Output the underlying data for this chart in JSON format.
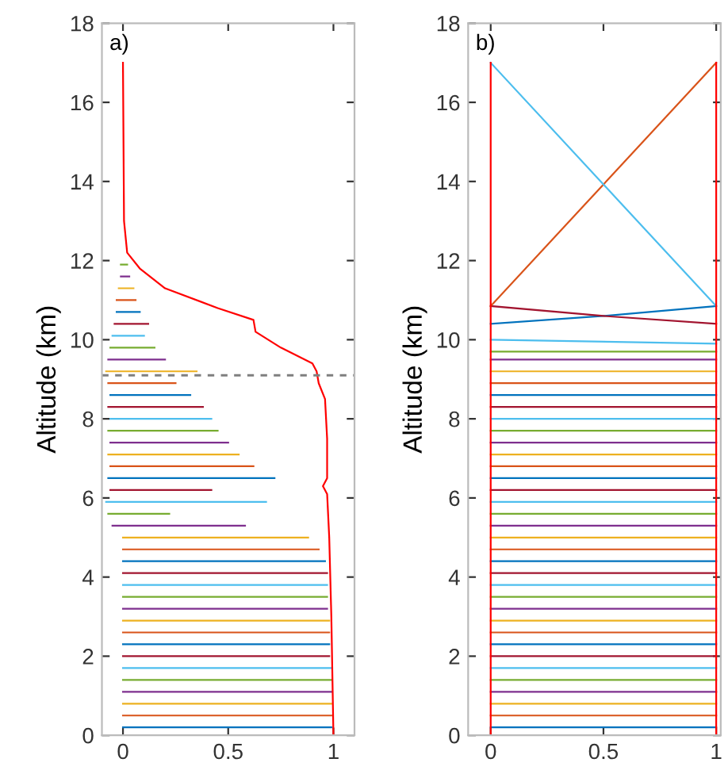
{
  "chart_data": [
    {
      "type": "line",
      "annotations": [
        "a)"
      ],
      "ylabel": "Altitude (km)",
      "xlim": [
        -0.1,
        1.1
      ],
      "xticks": [
        0,
        0.5,
        1
      ],
      "ylim": [
        0,
        18
      ],
      "yticks": [
        0,
        2,
        4,
        6,
        8,
        10,
        12,
        14,
        16,
        18
      ],
      "grid": false,
      "legend": false,
      "ref_lines": [
        {
          "axis": "y",
          "value": 9.1,
          "color": "#7f7f7f",
          "line_style": "dashed"
        }
      ],
      "series": [
        {
          "color": "#0072bd",
          "x": [
            0,
            0.99
          ],
          "values": [
            0.2,
            0.2
          ]
        },
        {
          "color": "#d95319",
          "x": [
            0,
            0.99
          ],
          "values": [
            0.5,
            0.5
          ]
        },
        {
          "color": "#edb120",
          "x": [
            0,
            0.99
          ],
          "values": [
            0.8,
            0.8
          ]
        },
        {
          "color": "#7e2f8e",
          "x": [
            0,
            0.99
          ],
          "values": [
            1.1,
            1.1
          ]
        },
        {
          "color": "#77ac30",
          "x": [
            0,
            0.99
          ],
          "values": [
            1.4,
            1.4
          ]
        },
        {
          "color": "#4dbeee",
          "x": [
            0,
            0.99
          ],
          "values": [
            1.7,
            1.7
          ]
        },
        {
          "color": "#a2142f",
          "x": [
            0,
            0.98
          ],
          "values": [
            2.0,
            2.0
          ]
        },
        {
          "color": "#0072bd",
          "x": [
            0,
            0.98
          ],
          "values": [
            2.3,
            2.3
          ]
        },
        {
          "color": "#d95319",
          "x": [
            0,
            0.98
          ],
          "values": [
            2.6,
            2.6
          ]
        },
        {
          "color": "#edb120",
          "x": [
            0,
            0.98
          ],
          "values": [
            2.9,
            2.9
          ]
        },
        {
          "color": "#7e2f8e",
          "x": [
            0,
            0.97
          ],
          "values": [
            3.2,
            3.2
          ]
        },
        {
          "color": "#77ac30",
          "x": [
            0,
            0.97
          ],
          "values": [
            3.5,
            3.5
          ]
        },
        {
          "color": "#4dbeee",
          "x": [
            0,
            0.97
          ],
          "values": [
            3.8,
            3.8
          ]
        },
        {
          "color": "#a2142f",
          "x": [
            0,
            0.97
          ],
          "values": [
            4.1,
            4.1
          ]
        },
        {
          "color": "#0072bd",
          "x": [
            0,
            0.96
          ],
          "values": [
            4.4,
            4.4
          ]
        },
        {
          "color": "#d95319",
          "x": [
            0,
            0.93
          ],
          "values": [
            4.7,
            4.7
          ]
        },
        {
          "color": "#edb120",
          "x": [
            0,
            0.88
          ],
          "values": [
            5.0,
            5.0
          ]
        },
        {
          "color": "#7e2f8e",
          "x": [
            -0.05,
            0.58
          ],
          "values": [
            5.3,
            5.3
          ]
        },
        {
          "color": "#77ac30",
          "x": [
            -0.07,
            0.22
          ],
          "values": [
            5.6,
            5.6
          ]
        },
        {
          "color": "#4dbeee",
          "x": [
            -0.08,
            0.68
          ],
          "values": [
            5.9,
            5.9
          ]
        },
        {
          "color": "#a2142f",
          "x": [
            -0.06,
            0.42
          ],
          "values": [
            6.2,
            6.2
          ]
        },
        {
          "color": "#0072bd",
          "x": [
            -0.07,
            0.72
          ],
          "values": [
            6.5,
            6.5
          ]
        },
        {
          "color": "#d95319",
          "x": [
            -0.06,
            0.62
          ],
          "values": [
            6.8,
            6.8
          ]
        },
        {
          "color": "#edb120",
          "x": [
            -0.07,
            0.55
          ],
          "values": [
            7.1,
            7.1
          ]
        },
        {
          "color": "#7e2f8e",
          "x": [
            -0.06,
            0.5
          ],
          "values": [
            7.4,
            7.4
          ]
        },
        {
          "color": "#77ac30",
          "x": [
            -0.07,
            0.45
          ],
          "values": [
            7.7,
            7.7
          ]
        },
        {
          "color": "#4dbeee",
          "x": [
            -0.06,
            0.42
          ],
          "values": [
            8.0,
            8.0
          ]
        },
        {
          "color": "#a2142f",
          "x": [
            -0.07,
            0.38
          ],
          "values": [
            8.3,
            8.3
          ]
        },
        {
          "color": "#0072bd",
          "x": [
            -0.06,
            0.32
          ],
          "values": [
            8.6,
            8.6
          ]
        },
        {
          "color": "#d95319",
          "x": [
            -0.07,
            0.25
          ],
          "values": [
            8.9,
            8.9
          ]
        },
        {
          "color": "#edb120",
          "x": [
            -0.08,
            0.35
          ],
          "values": [
            9.2,
            9.2
          ]
        },
        {
          "color": "#7e2f8e",
          "x": [
            -0.07,
            0.2
          ],
          "values": [
            9.5,
            9.5
          ]
        },
        {
          "color": "#77ac30",
          "x": [
            -0.06,
            0.15
          ],
          "values": [
            9.8,
            9.8
          ]
        },
        {
          "color": "#4dbeee",
          "x": [
            -0.05,
            0.1
          ],
          "values": [
            10.1,
            10.1
          ]
        },
        {
          "color": "#a2142f",
          "x": [
            -0.04,
            0.12
          ],
          "values": [
            10.4,
            10.4
          ]
        },
        {
          "color": "#0072bd",
          "x": [
            -0.03,
            0.08
          ],
          "values": [
            10.7,
            10.7
          ]
        },
        {
          "color": "#d95319",
          "x": [
            -0.03,
            0.06
          ],
          "values": [
            11.0,
            11.0
          ]
        },
        {
          "color": "#edb120",
          "x": [
            -0.02,
            0.05
          ],
          "values": [
            11.3,
            11.3
          ]
        },
        {
          "color": "#7e2f8e",
          "x": [
            -0.01,
            0.03
          ],
          "values": [
            11.6,
            11.6
          ]
        },
        {
          "color": "#77ac30",
          "x": [
            -0.01,
            0.02
          ],
          "values": [
            11.9,
            11.9
          ]
        },
        {
          "color": "#ff0000",
          "x": [
            1.0,
            0.99,
            0.98,
            0.97,
            0.95,
            0.97,
            0.97,
            0.96,
            0.93,
            0.92,
            0.9,
            0.75,
            0.63,
            0.62,
            0.45,
            0.2,
            0.08,
            0.02,
            0.005,
            0
          ],
          "values": [
            0,
            3,
            5,
            6.1,
            6.3,
            6.5,
            7.5,
            8.5,
            8.9,
            9.2,
            9.4,
            9.8,
            10.2,
            10.5,
            10.8,
            11.3,
            11.8,
            12.2,
            13,
            17
          ]
        }
      ]
    },
    {
      "type": "line",
      "annotations": [
        "b)"
      ],
      "ylabel": "Altitude (km)",
      "xlim": [
        -0.1,
        1.02
      ],
      "xticks": [
        0,
        0.5,
        1
      ],
      "ylim": [
        0,
        18
      ],
      "yticks": [
        0,
        2,
        4,
        6,
        8,
        10,
        12,
        14,
        16,
        18
      ],
      "grid": false,
      "legend": false,
      "series": [
        {
          "color": "#0072bd",
          "x": [
            0,
            1
          ],
          "values": [
            0.2,
            0.2
          ]
        },
        {
          "color": "#d95319",
          "x": [
            0,
            1
          ],
          "values": [
            0.5,
            0.5
          ]
        },
        {
          "color": "#edb120",
          "x": [
            0,
            1
          ],
          "values": [
            0.8,
            0.8
          ]
        },
        {
          "color": "#7e2f8e",
          "x": [
            0,
            1
          ],
          "values": [
            1.1,
            1.1
          ]
        },
        {
          "color": "#77ac30",
          "x": [
            0,
            1
          ],
          "values": [
            1.4,
            1.4
          ]
        },
        {
          "color": "#4dbeee",
          "x": [
            0,
            1
          ],
          "values": [
            1.7,
            1.7
          ]
        },
        {
          "color": "#a2142f",
          "x": [
            0,
            1
          ],
          "values": [
            2.0,
            2.0
          ]
        },
        {
          "color": "#0072bd",
          "x": [
            0,
            1
          ],
          "values": [
            2.3,
            2.3
          ]
        },
        {
          "color": "#d95319",
          "x": [
            0,
            1
          ],
          "values": [
            2.6,
            2.6
          ]
        },
        {
          "color": "#edb120",
          "x": [
            0,
            1
          ],
          "values": [
            2.9,
            2.9
          ]
        },
        {
          "color": "#7e2f8e",
          "x": [
            0,
            1
          ],
          "values": [
            3.2,
            3.2
          ]
        },
        {
          "color": "#77ac30",
          "x": [
            0,
            1
          ],
          "values": [
            3.5,
            3.5
          ]
        },
        {
          "color": "#4dbeee",
          "x": [
            0,
            1
          ],
          "values": [
            3.8,
            3.8
          ]
        },
        {
          "color": "#a2142f",
          "x": [
            0,
            1
          ],
          "values": [
            4.1,
            4.1
          ]
        },
        {
          "color": "#0072bd",
          "x": [
            0,
            1
          ],
          "values": [
            4.4,
            4.4
          ]
        },
        {
          "color": "#d95319",
          "x": [
            0,
            1
          ],
          "values": [
            4.7,
            4.7
          ]
        },
        {
          "color": "#edb120",
          "x": [
            0,
            1
          ],
          "values": [
            5.0,
            5.0
          ]
        },
        {
          "color": "#7e2f8e",
          "x": [
            0,
            1
          ],
          "values": [
            5.3,
            5.3
          ]
        },
        {
          "color": "#77ac30",
          "x": [
            0,
            1
          ],
          "values": [
            5.6,
            5.6
          ]
        },
        {
          "color": "#4dbeee",
          "x": [
            0,
            1
          ],
          "values": [
            5.9,
            5.9
          ]
        },
        {
          "color": "#a2142f",
          "x": [
            0,
            1
          ],
          "values": [
            6.2,
            6.2
          ]
        },
        {
          "color": "#0072bd",
          "x": [
            0,
            1
          ],
          "values": [
            6.5,
            6.5
          ]
        },
        {
          "color": "#d95319",
          "x": [
            0,
            1
          ],
          "values": [
            6.8,
            6.8
          ]
        },
        {
          "color": "#edb120",
          "x": [
            0,
            1
          ],
          "values": [
            7.1,
            7.1
          ]
        },
        {
          "color": "#7e2f8e",
          "x": [
            0,
            1
          ],
          "values": [
            7.4,
            7.4
          ]
        },
        {
          "color": "#77ac30",
          "x": [
            0,
            1
          ],
          "values": [
            7.7,
            7.7
          ]
        },
        {
          "color": "#4dbeee",
          "x": [
            0,
            1
          ],
          "values": [
            8.0,
            8.0
          ]
        },
        {
          "color": "#a2142f",
          "x": [
            0,
            1
          ],
          "values": [
            8.3,
            8.3
          ]
        },
        {
          "color": "#0072bd",
          "x": [
            0,
            1
          ],
          "values": [
            8.6,
            8.6
          ]
        },
        {
          "color": "#d95319",
          "x": [
            0,
            1
          ],
          "values": [
            8.9,
            8.9
          ]
        },
        {
          "color": "#edb120",
          "x": [
            0,
            1
          ],
          "values": [
            9.2,
            9.2
          ]
        },
        {
          "color": "#7e2f8e",
          "x": [
            0,
            1
          ],
          "values": [
            9.5,
            9.5
          ]
        },
        {
          "color": "#77ac30",
          "x": [
            0,
            1
          ],
          "values": [
            9.7,
            9.7
          ]
        },
        {
          "color": "#4dbeee",
          "x": [
            0,
            1
          ],
          "values": [
            10.0,
            9.9
          ]
        },
        {
          "color": "#0072bd",
          "x": [
            0,
            0.5,
            1
          ],
          "values": [
            10.4,
            10.6,
            10.85
          ]
        },
        {
          "color": "#a2142f",
          "x": [
            0,
            0.5,
            1
          ],
          "values": [
            10.85,
            10.6,
            10.4
          ]
        },
        {
          "color": "#d95319",
          "x": [
            0,
            1
          ],
          "values": [
            10.85,
            17
          ]
        },
        {
          "color": "#4dbeee",
          "x": [
            0,
            1
          ],
          "values": [
            17,
            10.85
          ]
        },
        {
          "color": "#ff0000",
          "x": [
            0,
            0
          ],
          "values": [
            0,
            17
          ]
        },
        {
          "color": "#ff0000",
          "x": [
            1,
            1
          ],
          "values": [
            0,
            17
          ]
        }
      ]
    }
  ]
}
